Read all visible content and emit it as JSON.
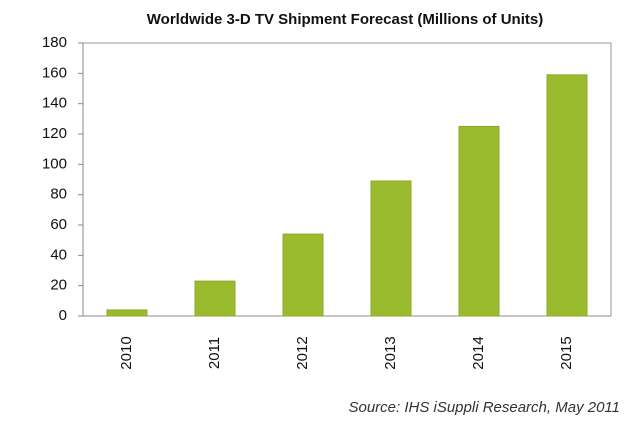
{
  "chart_data": {
    "type": "bar",
    "title": "Worldwide 3-D TV Shipment Forecast (Millions of Units)",
    "categories": [
      "2010",
      "2011",
      "2012",
      "2013",
      "2014",
      "2015"
    ],
    "values": [
      4,
      23,
      54,
      89,
      125,
      159
    ],
    "color": "#9bbb2f",
    "ylim": [
      0,
      180
    ],
    "yticks": [
      0,
      20,
      40,
      60,
      80,
      100,
      120,
      140,
      160,
      180
    ],
    "grid": false,
    "source": "Source: IHS iSuppli Research, May 2011"
  }
}
